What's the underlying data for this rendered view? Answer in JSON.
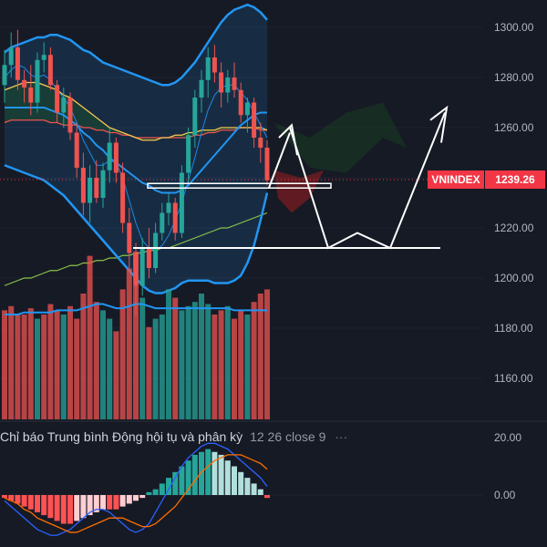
{
  "chart_data": [
    {
      "type": "candlestick",
      "symbol": "VNINDEX",
      "last_price_label": "1239.26",
      "last_price": 1239.26,
      "ylim": [
        1143,
        1307
      ],
      "y_ticks": [
        "1300.00",
        "1280.00",
        "1260.00",
        "1240.00",
        "1220.00",
        "1200.00",
        "1180.00",
        "1160.00"
      ],
      "y_tick_values": [
        1300,
        1280,
        1260,
        1240,
        1220,
        1200,
        1180,
        1160
      ],
      "colors": {
        "up": "#26a69a",
        "down": "#ef5350",
        "bb_band": "#2196f3",
        "bb_basis": "#2196f3",
        "ma_fast": "#1e88e5",
        "ma_medium": "#f9c74f",
        "ma_slow": "#ef5350",
        "ma_long": "#8bc34a",
        "drawing": "#ffffff",
        "cloud_bull": "#1b5e20",
        "cloud_bear": "#b71c1c",
        "price_line": "#f23645"
      },
      "candles": [
        [
          1277,
          1291,
          1270,
          1285
        ],
        [
          1285,
          1298,
          1280,
          1292
        ],
        [
          1292,
          1299,
          1275,
          1279
        ],
        [
          1279,
          1283,
          1270,
          1276
        ],
        [
          1276,
          1285,
          1265,
          1270
        ],
        [
          1270,
          1290,
          1266,
          1287
        ],
        [
          1287,
          1294,
          1282,
          1289
        ],
        [
          1289,
          1292,
          1275,
          1277
        ],
        [
          1277,
          1279,
          1262,
          1266
        ],
        [
          1266,
          1276,
          1260,
          1272
        ],
        [
          1272,
          1274,
          1255,
          1258
        ],
        [
          1258,
          1262,
          1240,
          1244
        ],
        [
          1244,
          1250,
          1225,
          1230
        ],
        [
          1230,
          1245,
          1222,
          1240
        ],
        [
          1240,
          1247,
          1230,
          1232
        ],
        [
          1232,
          1246,
          1228,
          1243
        ],
        [
          1243,
          1260,
          1238,
          1254
        ],
        [
          1254,
          1256,
          1238,
          1242
        ],
        [
          1242,
          1246,
          1218,
          1222
        ],
        [
          1222,
          1228,
          1204,
          1210
        ],
        [
          1210,
          1214,
          1185,
          1197
        ],
        [
          1197,
          1216,
          1193,
          1212
        ],
        [
          1212,
          1220,
          1200,
          1204
        ],
        [
          1204,
          1222,
          1202,
          1218
        ],
        [
          1218,
          1230,
          1215,
          1226
        ],
        [
          1226,
          1234,
          1221,
          1230
        ],
        [
          1230,
          1232,
          1215,
          1218
        ],
        [
          1218,
          1245,
          1216,
          1242
        ],
        [
          1242,
          1260,
          1238,
          1257
        ],
        [
          1257,
          1275,
          1252,
          1272
        ],
        [
          1272,
          1283,
          1266,
          1279
        ],
        [
          1279,
          1292,
          1272,
          1288
        ],
        [
          1288,
          1293,
          1278,
          1282
        ],
        [
          1282,
          1286,
          1268,
          1274
        ],
        [
          1274,
          1283,
          1270,
          1280
        ],
        [
          1280,
          1286,
          1272,
          1275
        ],
        [
          1275,
          1278,
          1262,
          1265
        ],
        [
          1265,
          1272,
          1258,
          1270
        ],
        [
          1270,
          1272,
          1252,
          1256
        ],
        [
          1256,
          1262,
          1246,
          1252
        ],
        [
          1252,
          1255,
          1237,
          1239
        ]
      ],
      "volume": [
        52,
        54,
        50,
        50,
        53,
        48,
        50,
        55,
        52,
        50,
        54,
        48,
        60,
        78,
        56,
        52,
        48,
        42,
        62,
        72,
        80,
        58,
        44,
        48,
        50,
        62,
        58,
        52,
        54,
        56,
        60,
        55,
        50,
        52,
        54,
        48,
        52,
        50,
        56,
        60,
        62
      ],
      "volume_dir": [
        "d",
        "d",
        "d",
        "d",
        "d",
        "u",
        "d",
        "d",
        "d",
        "u",
        "d",
        "d",
        "d",
        "d",
        "d",
        "u",
        "u",
        "d",
        "d",
        "d",
        "d",
        "u",
        "d",
        "u",
        "u",
        "u",
        "d",
        "u",
        "u",
        "u",
        "u",
        "u",
        "d",
        "d",
        "u",
        "d",
        "d",
        "u",
        "d",
        "d",
        "d"
      ],
      "volume_ma": [
        50,
        50,
        50,
        51,
        51,
        51,
        51,
        51,
        52,
        52,
        52,
        52,
        53,
        54,
        55,
        55,
        54,
        53,
        53,
        54,
        55,
        55,
        54,
        53,
        53,
        53,
        53,
        53,
        53,
        53,
        53,
        53,
        53,
        53,
        53,
        52,
        52,
        52,
        52,
        52,
        52
      ],
      "overlays": {
        "bb_upper": [
          1290,
          1292,
          1293,
          1294,
          1295,
          1296,
          1296,
          1297,
          1297,
          1296,
          1295,
          1293,
          1291,
          1290,
          1288,
          1286,
          1285,
          1284,
          1283,
          1282,
          1281,
          1280,
          1279,
          1278,
          1277,
          1277,
          1278,
          1280,
          1283,
          1286,
          1290,
          1294,
          1298,
          1302,
          1305,
          1307,
          1308,
          1309,
          1308,
          1306,
          1303
        ],
        "bb_lower": [
          1245,
          1244,
          1243,
          1242,
          1241,
          1240,
          1239,
          1237,
          1235,
          1233,
          1230,
          1227,
          1224,
          1221,
          1218,
          1215,
          1212,
          1209,
          1206,
          1203,
          1200,
          1197,
          1195,
          1194,
          1194,
          1195,
          1196,
          1198,
          1199,
          1199,
          1199,
          1199,
          1198,
          1198,
          1198,
          1199,
          1201,
          1206,
          1213,
          1223,
          1234
        ],
        "bb_basis": [
          1268,
          1268,
          1268,
          1268,
          1268,
          1268,
          1268,
          1267,
          1266,
          1265,
          1263,
          1261,
          1258,
          1256,
          1253,
          1251,
          1248,
          1246,
          1244,
          1242,
          1240,
          1238,
          1237,
          1235,
          1234,
          1234,
          1234,
          1235,
          1237,
          1240,
          1243,
          1246,
          1249,
          1252,
          1255,
          1258,
          1261,
          1263,
          1265,
          1266,
          1266
        ],
        "ma_fast": [
          1280,
          1283,
          1285,
          1284,
          1281,
          1280,
          1281,
          1279,
          1275,
          1272,
          1268,
          1262,
          1255,
          1250,
          1245,
          1245,
          1247,
          1246,
          1240,
          1231,
          1222,
          1215,
          1212,
          1211,
          1213,
          1217,
          1223,
          1230,
          1239,
          1248,
          1258,
          1267,
          1273,
          1276,
          1277,
          1277,
          1274,
          1271,
          1266,
          1261,
          1256
        ],
        "ma_medium": [
          1275,
          1276,
          1277,
          1278,
          1278,
          1278,
          1277,
          1276,
          1275,
          1273,
          1272,
          1270,
          1268,
          1266,
          1264,
          1262,
          1260,
          1259,
          1258,
          1257,
          1256,
          1255,
          1255,
          1255,
          1256,
          1256,
          1257,
          1257,
          1258,
          1258,
          1259,
          1259,
          1259,
          1260,
          1260,
          1260,
          1260,
          1260,
          1260,
          1260,
          1259
        ],
        "ma_slow": [
          1262,
          1263,
          1263,
          1263,
          1263,
          1263,
          1263,
          1262,
          1262,
          1261,
          1261,
          1261,
          1260,
          1260,
          1259,
          1259,
          1258,
          1258,
          1257,
          1257,
          1256,
          1256,
          1256,
          1256,
          1256,
          1256,
          1256,
          1256,
          1256,
          1257,
          1257,
          1258,
          1258,
          1259,
          1259,
          1259,
          1260,
          1260,
          1260,
          1259,
          1259
        ],
        "ma_long": [
          1197,
          1198,
          1199,
          1200,
          1200,
          1201,
          1202,
          1203,
          1203,
          1204,
          1205,
          1205,
          1206,
          1206,
          1207,
          1207,
          1208,
          1208,
          1209,
          1209,
          1210,
          1210,
          1211,
          1211,
          1212,
          1212,
          1213,
          1214,
          1215,
          1216,
          1217,
          1218,
          1219,
          1220,
          1220,
          1221,
          1222,
          1223,
          1224,
          1225,
          1226
        ]
      },
      "projection_path": [
        [
          1239,
          1236
        ],
        [
          1242,
          1250
        ],
        [
          1245,
          1260
        ],
        [
          1248,
          1245
        ],
        [
          1252,
          1212
        ],
        [
          1256,
          1218
        ],
        [
          1259,
          1212
        ],
        [
          1265,
          1252
        ],
        [
          1268,
          1262
        ]
      ],
      "support_levels": [
        1236,
        1212
      ]
    },
    {
      "type": "macd",
      "title": "Chỉ báo Trung bình Động hội tụ và phân kỳ",
      "params": "12 26 close 9",
      "more": "···",
      "y_ticks": [
        "20.00",
        "0.00"
      ],
      "y_tick_values": [
        20,
        0
      ],
      "ylim": [
        -21,
        31
      ],
      "histogram": [
        -1,
        -2,
        -3,
        -4,
        -5,
        -6,
        -7,
        -8,
        -9,
        -10,
        -10,
        -9,
        -8,
        -7,
        -6,
        -5,
        -5,
        -5,
        -4,
        -3,
        -2,
        -1,
        1,
        2,
        4,
        6,
        8,
        10,
        12,
        14,
        15,
        16,
        15,
        14,
        12,
        10,
        8,
        6,
        4,
        2,
        -1
      ],
      "macd_line": [
        -2,
        -4,
        -6,
        -8,
        -10,
        -12,
        -13,
        -14,
        -14,
        -13,
        -12,
        -10,
        -8,
        -6,
        -5,
        -5,
        -6,
        -8,
        -10,
        -12,
        -13,
        -12,
        -10,
        -6,
        -2,
        2,
        6,
        10,
        13,
        15,
        17,
        18,
        18,
        17,
        16,
        14,
        12,
        10,
        8,
        6,
        3
      ],
      "signal_line": [
        -1,
        -2,
        -3,
        -5,
        -6,
        -8,
        -9,
        -10,
        -11,
        -12,
        -13,
        -13,
        -12,
        -11,
        -10,
        -9,
        -8,
        -8,
        -8,
        -9,
        -10,
        -11,
        -11,
        -10,
        -8,
        -6,
        -4,
        -1,
        2,
        5,
        8,
        10,
        12,
        13,
        14,
        14,
        14,
        13,
        12,
        11,
        9
      ]
    }
  ]
}
